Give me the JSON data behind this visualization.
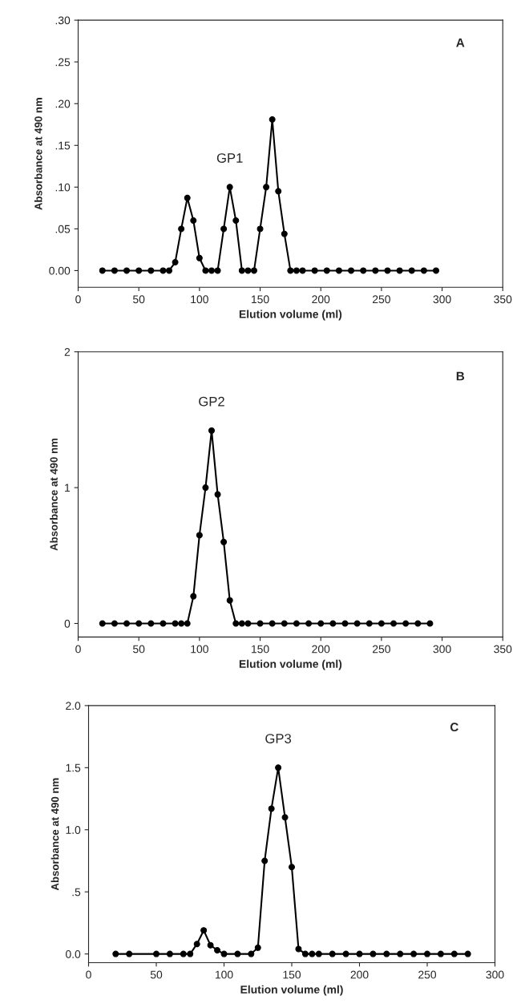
{
  "chart_data": [
    {
      "type": "line",
      "title": "A",
      "xlabel": "Elution volume (ml)",
      "ylabel": "Absorbance at 490 nm",
      "marker": "circle",
      "line_style": "solid",
      "grid": false,
      "legend": false,
      "x": [
        20,
        30,
        40,
        50,
        60,
        70,
        75,
        80,
        85,
        90,
        95,
        100,
        105,
        110,
        115,
        120,
        125,
        130,
        135,
        140,
        145,
        150,
        155,
        160,
        165,
        170,
        175,
        180,
        185,
        195,
        205,
        215,
        225,
        235,
        245,
        255,
        265,
        275,
        285,
        295
      ],
      "series": [
        {
          "color": "#000000",
          "values": [
            0,
            0,
            0,
            0,
            0,
            0,
            0,
            0.01,
            0.05,
            0.087,
            0.06,
            0.015,
            0,
            0,
            0,
            0.05,
            0.1,
            0.06,
            0,
            0,
            0,
            0.05,
            0.1,
            0.181,
            0.095,
            0.044,
            0,
            0,
            0,
            0,
            0,
            0,
            0,
            0,
            0,
            0,
            0,
            0,
            0,
            0
          ]
        }
      ],
      "annotations": [
        {
          "text": "GP1",
          "x": 125,
          "y": 0.1
        }
      ],
      "xlim": [
        0,
        350
      ],
      "xticks": [
        0,
        50,
        100,
        150,
        200,
        250,
        300,
        350
      ],
      "ylim": [
        -0.02,
        0.3
      ],
      "yticks": [
        {
          "value": 0,
          "label": "0.00"
        },
        {
          "value": 0.05,
          "label": ".05"
        },
        {
          "value": 0.1,
          "label": ".10"
        },
        {
          "value": 0.15,
          "label": ".15"
        },
        {
          "value": 0.2,
          "label": ".20"
        },
        {
          "value": 0.25,
          "label": ".25"
        },
        {
          "value": 0.3,
          "label": ".30"
        }
      ]
    },
    {
      "type": "line",
      "title": "B",
      "xlabel": "Elution volume (ml)",
      "ylabel": "Absorbance at 490 nm",
      "marker": "circle",
      "line_style": "solid",
      "grid": false,
      "legend": false,
      "x": [
        20,
        30,
        40,
        50,
        60,
        70,
        80,
        85,
        90,
        95,
        100,
        105,
        110,
        115,
        120,
        125,
        130,
        135,
        140,
        150,
        160,
        170,
        180,
        190,
        200,
        210,
        220,
        230,
        240,
        250,
        260,
        270,
        280,
        290
      ],
      "series": [
        {
          "color": "#000000",
          "values": [
            0,
            0,
            0,
            0,
            0,
            0,
            0,
            0,
            0,
            0.2,
            0.65,
            1.0,
            1.42,
            0.95,
            0.6,
            0.17,
            0,
            0,
            0,
            0,
            0,
            0,
            0,
            0,
            0,
            0,
            0,
            0,
            0,
            0,
            0,
            0,
            0,
            0
          ]
        }
      ],
      "annotations": [
        {
          "text": "GP2",
          "x": 110,
          "y": 1.42
        }
      ],
      "xlim": [
        0,
        350
      ],
      "xticks": [
        0,
        50,
        100,
        150,
        200,
        250,
        300,
        350
      ],
      "ylim": [
        -0.1,
        2
      ],
      "yticks": [
        0,
        1,
        2
      ]
    },
    {
      "type": "line",
      "title": "C",
      "xlabel": "Elution volume (ml)",
      "ylabel": "Absorbance at 490 nm",
      "marker": "circle",
      "line_style": "solid",
      "grid": false,
      "legend": false,
      "x": [
        20,
        30,
        50,
        60,
        70,
        75,
        80,
        85,
        90,
        95,
        100,
        110,
        120,
        125,
        130,
        135,
        140,
        145,
        150,
        155,
        160,
        165,
        170,
        180,
        190,
        200,
        210,
        220,
        230,
        240,
        250,
        260,
        270,
        280
      ],
      "series": [
        {
          "color": "#000000",
          "values": [
            0,
            0,
            0,
            0,
            0,
            0,
            0.08,
            0.19,
            0.07,
            0.03,
            0,
            0,
            0,
            0.05,
            0.75,
            1.17,
            1.5,
            1.1,
            0.7,
            0.04,
            0,
            0,
            0,
            0,
            0,
            0,
            0,
            0,
            0,
            0,
            0,
            0,
            0,
            0
          ]
        }
      ],
      "annotations": [
        {
          "text": "GP3",
          "x": 140,
          "y": 1.5
        }
      ],
      "xlim": [
        0,
        300
      ],
      "xticks": [
        0,
        50,
        100,
        150,
        200,
        250,
        300
      ],
      "ylim": [
        -0.07,
        2.0
      ],
      "yticks": [
        {
          "value": 0,
          "label": "0.0"
        },
        {
          "value": 0.5,
          "label": ".5"
        },
        {
          "value": 1.0,
          "label": "1.0"
        },
        {
          "value": 1.5,
          "label": "1.5"
        },
        {
          "value": 2.0,
          "label": "2.0"
        }
      ]
    }
  ]
}
